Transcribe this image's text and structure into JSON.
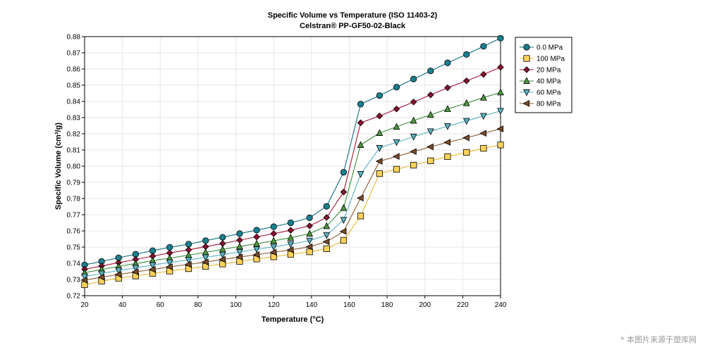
{
  "chart_data": {
    "type": "line",
    "title": "Specific Volume vs Temperature (ISO 11403-2)",
    "subtitle": "Celstran® PP-GF50-02-Black",
    "xlabel": "Temperature (°C)",
    "ylabel": "Specific Volume (cm³/g)",
    "xlim": [
      20,
      240
    ],
    "ylim": [
      0.72,
      0.88
    ],
    "x_ticks": [
      "20",
      "40",
      "60",
      "80",
      "100",
      "120",
      "140",
      "160",
      "180",
      "200",
      "220",
      "240"
    ],
    "y_ticks": [
      "0.72",
      "0.73",
      "0.74",
      "0.75",
      "0.76",
      "0.77",
      "0.78",
      "0.79",
      "0.80",
      "0.81",
      "0.82",
      "0.83",
      "0.84",
      "0.85",
      "0.86",
      "0.87",
      "0.88"
    ],
    "grid": true,
    "legend_position": "right",
    "x": [
      20,
      29,
      38,
      47,
      56,
      65,
      75,
      84,
      93,
      102,
      111,
      120,
      129,
      139,
      148,
      157,
      166,
      176,
      185,
      194,
      203,
      212,
      222,
      231,
      240
    ],
    "series": [
      {
        "name": "0.0 MPa",
        "marker": "circle",
        "color": "#0f6e7d",
        "fill": "#1a7f8e",
        "values": [
          0.739,
          0.7412,
          0.7434,
          0.7456,
          0.7478,
          0.7499,
          0.7518,
          0.754,
          0.7561,
          0.7583,
          0.7605,
          0.7626,
          0.765,
          0.7681,
          0.7752,
          0.7962,
          0.8383,
          0.8436,
          0.8488,
          0.8538,
          0.8588,
          0.8638,
          0.869,
          0.874,
          0.879
        ]
      },
      {
        "name": "100 MPa",
        "marker": "square",
        "color": "#e8b830",
        "fill": "#ffd35a",
        "values": [
          0.7268,
          0.729,
          0.7308,
          0.7322,
          0.7338,
          0.7352,
          0.7367,
          0.7381,
          0.7396,
          0.7412,
          0.7427,
          0.744,
          0.7456,
          0.7471,
          0.749,
          0.7542,
          0.7692,
          0.7954,
          0.7981,
          0.8006,
          0.8033,
          0.8059,
          0.8085,
          0.811,
          0.8131
        ]
      },
      {
        "name": "20 MPa",
        "marker": "diamond",
        "color": "#a8163a",
        "fill": "#8b1030",
        "values": [
          0.7363,
          0.7383,
          0.7404,
          0.7424,
          0.7444,
          0.7464,
          0.7483,
          0.7503,
          0.7522,
          0.7543,
          0.7563,
          0.7583,
          0.7604,
          0.7631,
          0.7683,
          0.784,
          0.8268,
          0.831,
          0.8353,
          0.8396,
          0.844,
          0.8484,
          0.8527,
          0.8567,
          0.8611
        ]
      },
      {
        "name": "40 MPa",
        "marker": "triangle-up",
        "color": "#3c8a3c",
        "fill": "#4c9a3f",
        "values": [
          0.7342,
          0.7362,
          0.7381,
          0.7398,
          0.7416,
          0.7432,
          0.745,
          0.7468,
          0.7486,
          0.7504,
          0.7521,
          0.7539,
          0.7558,
          0.7583,
          0.763,
          0.7742,
          0.8131,
          0.8205,
          0.8243,
          0.8281,
          0.8317,
          0.8353,
          0.8389,
          0.8423,
          0.8456
        ]
      },
      {
        "name": "60 MPa",
        "marker": "triangle-down",
        "color": "#5ab2c2",
        "fill": "#5ab2c2",
        "values": [
          0.7318,
          0.7337,
          0.7355,
          0.7372,
          0.7389,
          0.7405,
          0.7421,
          0.7437,
          0.7453,
          0.747,
          0.7487,
          0.7502,
          0.7518,
          0.754,
          0.7574,
          0.7668,
          0.7951,
          0.8112,
          0.8148,
          0.8182,
          0.8215,
          0.8247,
          0.8279,
          0.831,
          0.8341
        ]
      },
      {
        "name": "80 MPa",
        "marker": "triangle-left",
        "color": "#8a5a30",
        "fill": "#7a4a28",
        "values": [
          0.7296,
          0.7314,
          0.7331,
          0.7347,
          0.7362,
          0.7378,
          0.7393,
          0.7408,
          0.7424,
          0.7439,
          0.7453,
          0.7468,
          0.7483,
          0.7502,
          0.7533,
          0.7597,
          0.7803,
          0.803,
          0.806,
          0.809,
          0.8119,
          0.8147,
          0.8175,
          0.8203,
          0.823
        ]
      }
    ]
  },
  "watermark": "* 本图片来源于塑库网"
}
